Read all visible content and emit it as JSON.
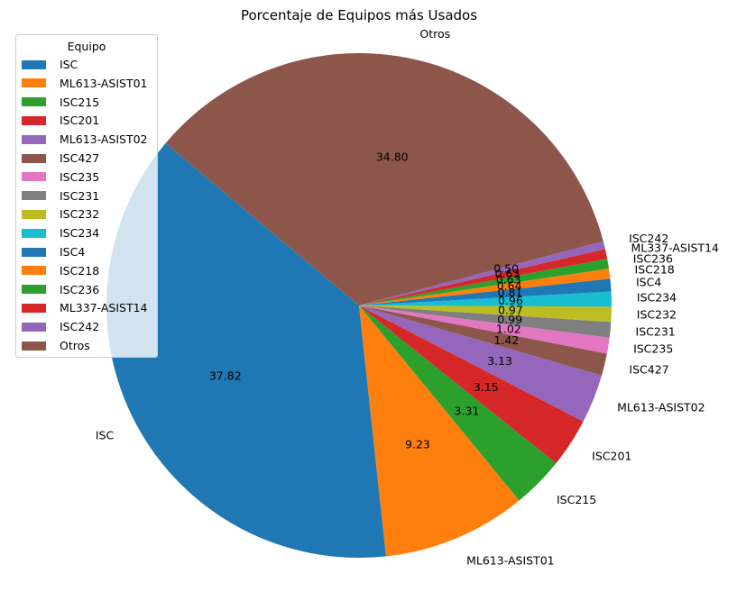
{
  "chart_data": {
    "type": "pie",
    "title": "Porcentaje de Equipos más Usados",
    "labels": [
      "ISC",
      "ML613-ASIST01",
      "ISC215",
      "ISC201",
      "ML613-ASIST02",
      "ISC427",
      "ISC235",
      "ISC231",
      "ISC232",
      "ISC234",
      "ISC4",
      "ISC218",
      "ISC236",
      "ML337-ASIST14",
      "ISC242",
      "Otros"
    ],
    "values": [
      37.82,
      9.23,
      3.31,
      3.15,
      3.13,
      1.42,
      1.02,
      0.99,
      0.97,
      0.96,
      0.81,
      0.64,
      0.63,
      0.63,
      0.5,
      34.8
    ],
    "value_labels": [
      "37.82",
      "9.23",
      "3.31",
      "3.15",
      "3.13",
      "1.42",
      "1.02",
      "0.99",
      "0.97",
      "0.96",
      "0.81",
      "0.64",
      "0.63",
      "0.63",
      "0.50",
      "34.80"
    ],
    "colors": [
      "#1f77b4",
      "#ff7f0e",
      "#2ca02c",
      "#d62728",
      "#9467bd",
      "#8c564b",
      "#e377c2",
      "#7f7f7f",
      "#bcbd22",
      "#17becf",
      "#1f77b4",
      "#ff7f0e",
      "#2ca02c",
      "#d62728",
      "#9467bd",
      "#8c564b"
    ],
    "start_angle_deg": 140,
    "direction": "counterclockwise",
    "legend": {
      "title": "Equipo",
      "placement": "upper-left"
    }
  }
}
